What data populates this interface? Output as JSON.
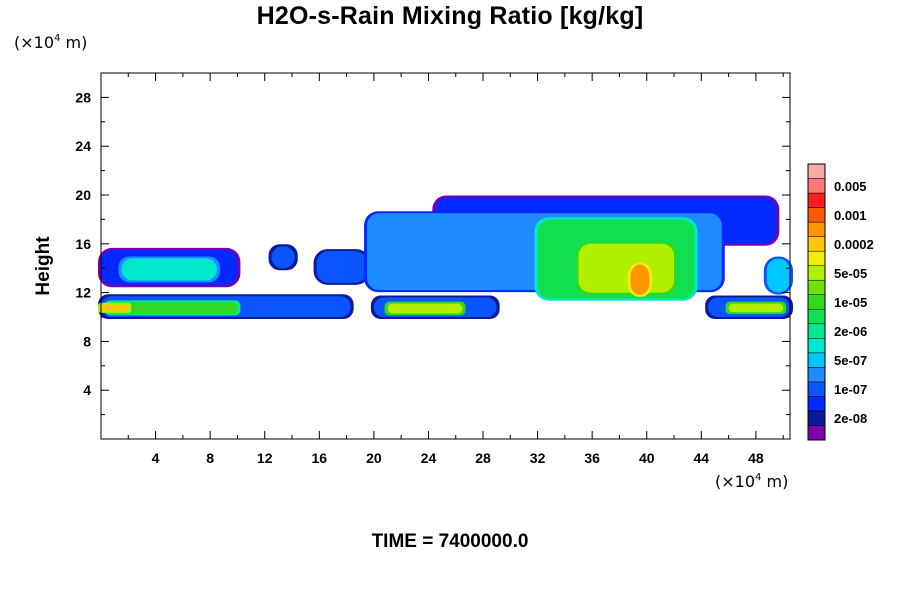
{
  "chart_data": {
    "type": "heatmap",
    "title": "H2O-s-Rain Mixing Ratio [kg/kg]",
    "xlabel": "",
    "ylabel": "Height",
    "x_unit": "(×10",
    "x_unit_exp": "4",
    "x_unit_tail": " m)",
    "y_unit": "(×10",
    "y_unit_exp": "4",
    "y_unit_tail": " m)",
    "xlim": [
      0,
      50.5
    ],
    "ylim": [
      0,
      30
    ],
    "xticks": [
      4,
      8,
      12,
      16,
      20,
      24,
      28,
      32,
      36,
      40,
      44,
      48
    ],
    "yticks": [
      4,
      8,
      12,
      16,
      20,
      24,
      28
    ],
    "time_label": "TIME = 7400000.0",
    "colorbar": {
      "levels": [
        {
          "label": "",
          "color": "#7b00b0"
        },
        {
          "label": "2e-08",
          "color": "#0c1b9c"
        },
        {
          "label": "",
          "color": "#0028ff"
        },
        {
          "label": "1e-07",
          "color": "#0a55ff"
        },
        {
          "label": "",
          "color": "#1e8cff"
        },
        {
          "label": "5e-07",
          "color": "#00c8ff"
        },
        {
          "label": "",
          "color": "#00e8d0"
        },
        {
          "label": "2e-06",
          "color": "#00e890"
        },
        {
          "label": "",
          "color": "#10e050"
        },
        {
          "label": "1e-05",
          "color": "#30d820"
        },
        {
          "label": "",
          "color": "#70e010"
        },
        {
          "label": "5e-05",
          "color": "#b0f000"
        },
        {
          "label": "",
          "color": "#f0f000"
        },
        {
          "label": "0.0002",
          "color": "#ffc800"
        },
        {
          "label": "",
          "color": "#ff9600"
        },
        {
          "label": "0.001",
          "color": "#ff5a00"
        },
        {
          "label": "",
          "color": "#ff1e1e"
        },
        {
          "label": "0.005",
          "color": "#ff7878"
        },
        {
          "label": "",
          "color": "#ffa8a8"
        }
      ]
    },
    "regions": [
      {
        "name": "low-layer-left",
        "level": 3,
        "xmin": 0,
        "xmax": 18.3,
        "ymin": 10.0,
        "ymax": 11.7
      },
      {
        "name": "low-layer-left-core",
        "level": 9,
        "xmin": 0.5,
        "xmax": 10,
        "ymin": 10.3,
        "ymax": 11.2
      },
      {
        "name": "low-layer-left-hot",
        "level": 13,
        "xmin": 0,
        "xmax": 2,
        "ymin": 10.5,
        "ymax": 11.0
      },
      {
        "name": "low-layer-mid",
        "level": 3,
        "xmin": 20,
        "xmax": 29,
        "ymin": 10.0,
        "ymax": 11.6
      },
      {
        "name": "low-layer-mid-core",
        "level": 11,
        "xmin": 21,
        "xmax": 26.5,
        "ymin": 10.3,
        "ymax": 11.1
      },
      {
        "name": "low-layer-right",
        "level": 3,
        "xmin": 44.5,
        "xmax": 50.5,
        "ymin": 10.0,
        "ymax": 11.6
      },
      {
        "name": "low-layer-right-core",
        "level": 11,
        "xmin": 46,
        "xmax": 50,
        "ymin": 10.4,
        "ymax": 11.1
      },
      {
        "name": "upper-left-deck",
        "level": 2,
        "xmin": 0,
        "xmax": 10,
        "ymin": 12.6,
        "ymax": 15.5
      },
      {
        "name": "upper-left-core",
        "level": 6,
        "xmin": 1.5,
        "xmax": 8.5,
        "ymin": 13.0,
        "ymax": 14.8
      },
      {
        "name": "small-cell-15",
        "level": 3,
        "xmin": 12.5,
        "xmax": 14.2,
        "ymin": 14.0,
        "ymax": 15.8
      },
      {
        "name": "small-cell-17",
        "level": 3,
        "xmin": 15.8,
        "xmax": 19.5,
        "ymin": 12.8,
        "ymax": 15.4
      },
      {
        "name": "anvil-top",
        "level": 2,
        "xmin": 24.5,
        "xmax": 49.5,
        "ymin": 16.0,
        "ymax": 19.8
      },
      {
        "name": "anvil-mid",
        "level": 4,
        "xmin": 19.5,
        "xmax": 45.5,
        "ymin": 12.2,
        "ymax": 18.5
      },
      {
        "name": "convective-core",
        "level": 8,
        "xmin": 32,
        "xmax": 43.5,
        "ymin": 11.5,
        "ymax": 18.0
      },
      {
        "name": "convective-inner",
        "level": 11,
        "xmin": 35,
        "xmax": 42,
        "ymin": 12.0,
        "ymax": 16.0
      },
      {
        "name": "convective-hot",
        "level": 14,
        "xmin": 38.8,
        "xmax": 40.2,
        "ymin": 11.8,
        "ymax": 14.3
      },
      {
        "name": "edge-right-cell",
        "level": 5,
        "xmin": 48.8,
        "xmax": 50.5,
        "ymin": 12.0,
        "ymax": 14.8
      }
    ]
  }
}
